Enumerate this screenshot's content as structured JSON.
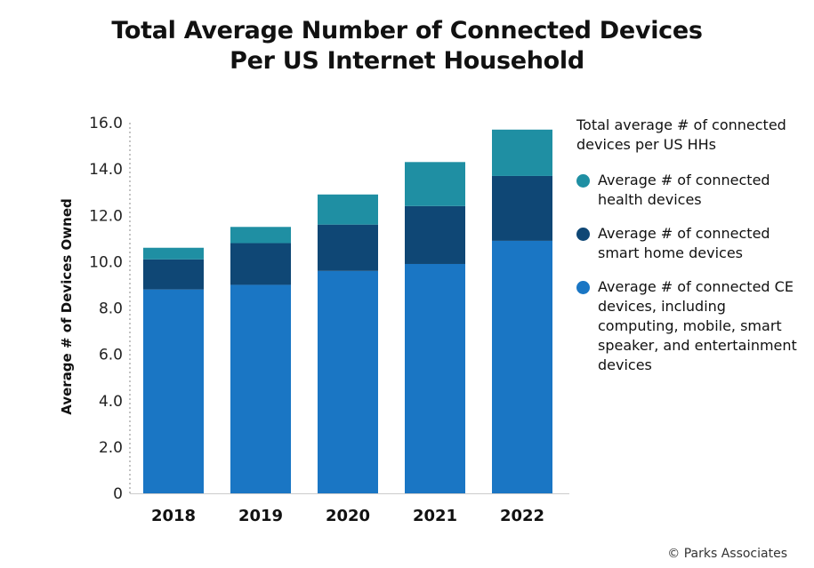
{
  "title_line1": "Total Average Number of Connected Devices",
  "title_line2": "Per US Internet Household",
  "legend_header": "Total average # of connected devices per US HHs",
  "credit": "© Parks Associates",
  "colors": {
    "ce": "#1a76c4",
    "smart_home": "#0f4775",
    "health": "#1f8fa3"
  },
  "chart_data": {
    "type": "bar",
    "stacked": true,
    "categories": [
      "2018",
      "2019",
      "2020",
      "2021",
      "2022"
    ],
    "series": [
      {
        "name": "Average # of connected CE devices, including computing, mobile, smart speaker, and entertainment devices",
        "values": [
          8.8,
          9.0,
          9.6,
          9.9,
          10.9
        ]
      },
      {
        "name": "Average # of connected smart home devices",
        "values": [
          1.3,
          1.8,
          2.0,
          2.5,
          2.8
        ]
      },
      {
        "name": "Average # of connected health devices",
        "values": [
          0.5,
          0.7,
          1.3,
          1.9,
          2.0
        ]
      }
    ],
    "ylabel": "Average # of Devices Owned",
    "xlabel": "",
    "ylim": [
      0,
      16
    ],
    "yticks": [
      "0",
      "2.0",
      "4.0",
      "6.0",
      "8.0",
      "10.0",
      "12.0",
      "14.0",
      "16.0"
    ],
    "grid": false,
    "legend_position": "right"
  }
}
